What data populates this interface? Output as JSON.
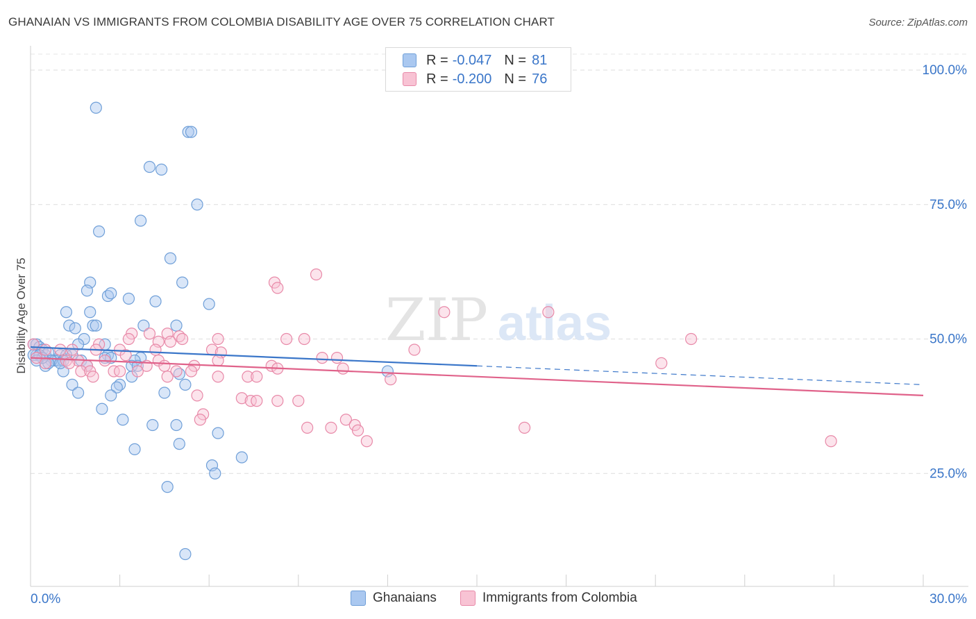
{
  "title": "GHANAIAN VS IMMIGRANTS FROM COLOMBIA DISABILITY AGE OVER 75 CORRELATION CHART",
  "source": "Source: ZipAtlas.com",
  "watermark": {
    "zip": "ZIP",
    "atlas": "atlas"
  },
  "legend": {
    "rows": [
      {
        "r_label": "R =",
        "r_value": "-0.047",
        "n_label": "N =",
        "n_value": "81",
        "color": "#aac8f0",
        "stroke": "#6f9fd8"
      },
      {
        "r_label": "R =",
        "r_value": "-0.200",
        "n_label": "N =",
        "n_value": "76",
        "color": "#f8c3d4",
        "stroke": "#e889a8"
      }
    ]
  },
  "bottom_legend": [
    {
      "label": "Ghanaians",
      "color": "#aac8f0",
      "stroke": "#6f9fd8"
    },
    {
      "label": "Immigrants from Colombia",
      "color": "#f8c3d4",
      "stroke": "#e889a8"
    }
  ],
  "chart_data": {
    "type": "scatter",
    "title": "GHANAIAN VS IMMIGRANTS FROM COLOMBIA DISABILITY AGE OVER 75 CORRELATION CHART",
    "xlabel": "",
    "ylabel": "Disability Age Over 75",
    "xlim": [
      0,
      30
    ],
    "ylim": [
      4,
      104
    ],
    "x_tick_labels": [
      "0.0%",
      "30.0%"
    ],
    "y_ticks": [
      25,
      50,
      75,
      100
    ],
    "y_tick_labels": [
      "25.0%",
      "50.0%",
      "75.0%",
      "100.0%"
    ],
    "grid": true,
    "series": [
      {
        "name": "Ghanaians",
        "color": "#6f9fd8",
        "fill": "#aac8f0",
        "trend": {
          "x": [
            0,
            15
          ],
          "y": [
            48.5,
            45.0
          ],
          "dashed_to": [
            30,
            41.5
          ],
          "color": "#3a76c9"
        },
        "points": [
          [
            2.2,
            93
          ],
          [
            5.3,
            88.5
          ],
          [
            5.4,
            88.5
          ],
          [
            4.0,
            82
          ],
          [
            4.4,
            81.5
          ],
          [
            5.6,
            75
          ],
          [
            3.7,
            72
          ],
          [
            2.3,
            70
          ],
          [
            4.7,
            65
          ],
          [
            5.1,
            60.5
          ],
          [
            2.0,
            60.5
          ],
          [
            1.9,
            59
          ],
          [
            2.6,
            58
          ],
          [
            2.7,
            58.5
          ],
          [
            3.3,
            57.5
          ],
          [
            4.2,
            57
          ],
          [
            6.0,
            56.5
          ],
          [
            1.2,
            55
          ],
          [
            2.0,
            55
          ],
          [
            3.8,
            52.5
          ],
          [
            1.3,
            52.5
          ],
          [
            2.1,
            52.5
          ],
          [
            2.2,
            52.5
          ],
          [
            4.9,
            52.5
          ],
          [
            1.5,
            52
          ],
          [
            1.8,
            50
          ],
          [
            1.6,
            49
          ],
          [
            2.5,
            49
          ],
          [
            0.1,
            49
          ],
          [
            0.2,
            49
          ],
          [
            0.3,
            48.5
          ],
          [
            0.4,
            48
          ],
          [
            0.5,
            47
          ],
          [
            1.0,
            47
          ],
          [
            1.4,
            47
          ],
          [
            2.6,
            47
          ],
          [
            3.7,
            46.5
          ],
          [
            0.2,
            47
          ],
          [
            0.6,
            47.5
          ],
          [
            1.2,
            47
          ],
          [
            0.8,
            46
          ],
          [
            0.9,
            46
          ],
          [
            1.7,
            46
          ],
          [
            2.5,
            46.5
          ],
          [
            2.7,
            46.5
          ],
          [
            3.5,
            46
          ],
          [
            0.7,
            46
          ],
          [
            1.1,
            46
          ],
          [
            1.9,
            45
          ],
          [
            0.5,
            45
          ],
          [
            0.6,
            45.5
          ],
          [
            3.4,
            45
          ],
          [
            3.6,
            45
          ],
          [
            12.0,
            44
          ],
          [
            1.1,
            44
          ],
          [
            3.4,
            43
          ],
          [
            5.0,
            43.5
          ],
          [
            1.4,
            41.5
          ],
          [
            3.0,
            41.5
          ],
          [
            5.2,
            41.5
          ],
          [
            2.9,
            41
          ],
          [
            4.5,
            40
          ],
          [
            1.6,
            40
          ],
          [
            2.7,
            39.5
          ],
          [
            2.4,
            37
          ],
          [
            3.1,
            35
          ],
          [
            4.1,
            34
          ],
          [
            4.9,
            34
          ],
          [
            6.3,
            32.5
          ],
          [
            5.0,
            30.5
          ],
          [
            3.5,
            29.5
          ],
          [
            7.1,
            28
          ],
          [
            6.1,
            26.5
          ],
          [
            6.2,
            25
          ],
          [
            4.6,
            22.5
          ],
          [
            5.2,
            10
          ],
          [
            0.1,
            47
          ],
          [
            0.3,
            47
          ],
          [
            0.4,
            46.5
          ],
          [
            0.2,
            46
          ],
          [
            1.0,
            45.5
          ]
        ]
      },
      {
        "name": "Immigrants from Colombia",
        "color": "#e889a8",
        "fill": "#f8c3d4",
        "trend": {
          "x": [
            0,
            30
          ],
          "y": [
            46.5,
            39.5
          ],
          "color": "#e0628a"
        },
        "points": [
          [
            9.6,
            62
          ],
          [
            8.2,
            60.5
          ],
          [
            8.3,
            59.5
          ],
          [
            13.9,
            55
          ],
          [
            17.4,
            55
          ],
          [
            22.2,
            50
          ],
          [
            3.4,
            51
          ],
          [
            4.0,
            51
          ],
          [
            4.6,
            51
          ],
          [
            5.0,
            50.5
          ],
          [
            5.1,
            50
          ],
          [
            6.3,
            50
          ],
          [
            8.6,
            50
          ],
          [
            9.2,
            50
          ],
          [
            3.3,
            50
          ],
          [
            4.3,
            49.5
          ],
          [
            4.7,
            49.5
          ],
          [
            0.1,
            49
          ],
          [
            0.5,
            48
          ],
          [
            2.3,
            49
          ],
          [
            1.0,
            48
          ],
          [
            1.4,
            48
          ],
          [
            2.2,
            48
          ],
          [
            3.0,
            48
          ],
          [
            4.2,
            48
          ],
          [
            6.1,
            48
          ],
          [
            6.4,
            47.5
          ],
          [
            12.9,
            48
          ],
          [
            9.8,
            46.5
          ],
          [
            10.3,
            46.5
          ],
          [
            0.2,
            46.5
          ],
          [
            1.2,
            46
          ],
          [
            1.6,
            46
          ],
          [
            2.5,
            46
          ],
          [
            4.3,
            46
          ],
          [
            6.3,
            46
          ],
          [
            0.5,
            45.5
          ],
          [
            1.9,
            45
          ],
          [
            3.9,
            45
          ],
          [
            4.5,
            45
          ],
          [
            5.5,
            45
          ],
          [
            8.1,
            45
          ],
          [
            8.3,
            44.5
          ],
          [
            10.5,
            44.5
          ],
          [
            21.2,
            45.5
          ],
          [
            1.7,
            44
          ],
          [
            2.0,
            44
          ],
          [
            2.8,
            44
          ],
          [
            3.0,
            44
          ],
          [
            3.6,
            44
          ],
          [
            4.9,
            44
          ],
          [
            5.4,
            44
          ],
          [
            6.3,
            43
          ],
          [
            7.3,
            43
          ],
          [
            7.6,
            43
          ],
          [
            12.1,
            42.5
          ],
          [
            2.1,
            43
          ],
          [
            4.6,
            43
          ],
          [
            7.1,
            39
          ],
          [
            7.4,
            38.5
          ],
          [
            7.6,
            38.5
          ],
          [
            8.3,
            38.5
          ],
          [
            9.0,
            38.5
          ],
          [
            5.6,
            39.5
          ],
          [
            5.8,
            36
          ],
          [
            5.7,
            35
          ],
          [
            10.6,
            35
          ],
          [
            10.9,
            34
          ],
          [
            11.0,
            33
          ],
          [
            9.3,
            33.5
          ],
          [
            10.1,
            33.5
          ],
          [
            16.6,
            33.5
          ],
          [
            11.3,
            31
          ],
          [
            26.9,
            31
          ],
          [
            3.2,
            47
          ],
          [
            1.3,
            45.5
          ]
        ]
      }
    ]
  }
}
